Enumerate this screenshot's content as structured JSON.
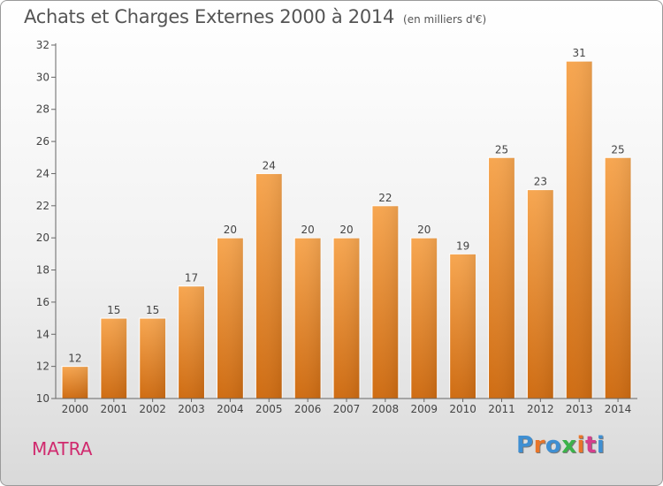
{
  "title": "Achats et Charges Externes 2000 à 2014",
  "subtitle": "(en milliers d'€)",
  "commune": "MATRA",
  "logo": {
    "letters": [
      "P",
      "r",
      "o",
      "x",
      "i",
      "t",
      "i"
    ],
    "colors": [
      "#3f8fd2",
      "#e8752a",
      "#3f8fd2",
      "#3cb24a",
      "#e8752a",
      "#d43f8d",
      "#3f8fd2"
    ]
  },
  "chart_data": {
    "type": "bar",
    "title": "Achats et Charges Externes 2000 à 2014",
    "subtitle": "(en milliers d'€)",
    "categories": [
      "2000",
      "2001",
      "2002",
      "2003",
      "2004",
      "2005",
      "2006",
      "2007",
      "2008",
      "2009",
      "2010",
      "2011",
      "2012",
      "2013",
      "2014"
    ],
    "values": [
      12,
      15,
      15,
      17,
      20,
      24,
      20,
      20,
      22,
      20,
      19,
      25,
      23,
      31,
      25
    ],
    "ylim": [
      10,
      32
    ],
    "yticks": [
      10,
      12,
      14,
      16,
      18,
      20,
      22,
      24,
      26,
      28,
      30,
      32
    ],
    "grid": false,
    "bar_color": "#f0902f"
  }
}
